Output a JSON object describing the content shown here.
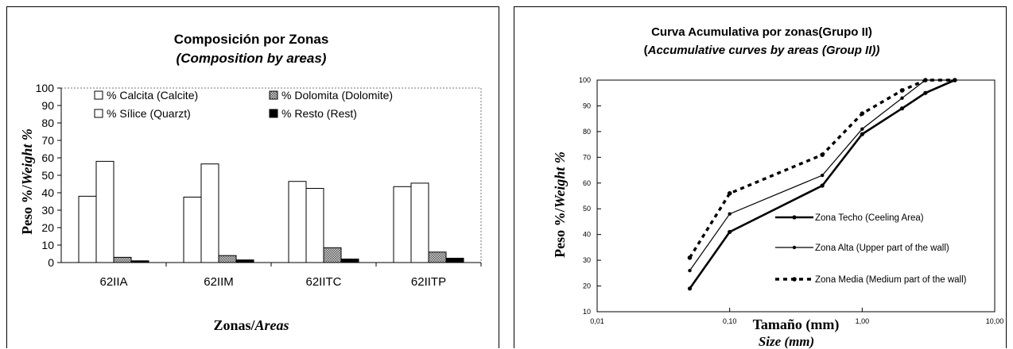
{
  "charts": {
    "left": {
      "title": "Composición por Zonas",
      "subtitle": "(Composition by areas)",
      "ylabel_a": "Peso %/",
      "ylabel_b": "Weight %",
      "xlabel_a": "Zonas/",
      "xlabel_b": "Areas"
    },
    "right": {
      "title": "Curva Acumulativa por zonas(Grupo II)",
      "subtitle_pre": "(",
      "subtitle_main": "Accumulative curves by areas (Group II))",
      "ylabel_a": "Peso %/",
      "ylabel_b": "Weight %",
      "xlabel": "Tamaño (mm)",
      "xlabel_sub": "Size (mm)"
    }
  },
  "chart_data": [
    {
      "type": "bar",
      "title": "Composición por Zonas",
      "subtitle": "(Composition by areas)",
      "xlabel": "Zonas/Areas",
      "ylabel": "Peso %/Weight %",
      "ylim": [
        0,
        100
      ],
      "yticks": [
        "0",
        "10",
        "20",
        "30",
        "40",
        "50",
        "60",
        "70",
        "80",
        "90",
        "100"
      ],
      "categories": [
        "62IIA",
        "62IIM",
        "62IITC",
        "62IITP"
      ],
      "series": [
        {
          "name": "% Calcita (Calcite)",
          "values": [
            38,
            37.5,
            46.5,
            43.5
          ],
          "color": "#ffffff"
        },
        {
          "name": "% Sílice (Quarzt)",
          "values": [
            58,
            56.5,
            42.5,
            45.5
          ],
          "color": "#ffffff"
        },
        {
          "name": "% Dolomita (Dolomite)",
          "values": [
            3,
            4,
            8.5,
            6
          ],
          "color": "#9a9a9a"
        },
        {
          "name": "% Resto (Rest)",
          "values": [
            1,
            1.5,
            2,
            2.5
          ],
          "color": "#000000"
        }
      ],
      "legend": "top-left",
      "grid": false
    },
    {
      "type": "line",
      "title": "Curva Acumulativa por zonas(Grupo II)",
      "subtitle": "(Accumulative curves by areas (Group II))",
      "xlabel": "Tamaño (mm)",
      "xlabel_sub": "Size (mm)",
      "ylabel": "Peso %/Weight %",
      "xscale": "log",
      "xlim": [
        0.01,
        10
      ],
      "xticks": [
        "0,01",
        "0,10",
        "1,00",
        "10,00"
      ],
      "ylim": [
        10,
        100
      ],
      "yticks": [
        "10",
        "20",
        "30",
        "40",
        "50",
        "60",
        "70",
        "80",
        "90",
        "100"
      ],
      "x": [
        0.05,
        0.1,
        0.5,
        1.0,
        2.0,
        3.0,
        5.0
      ],
      "series": [
        {
          "name": "Zona Techo (Ceeling Area)",
          "values": [
            19,
            41,
            59,
            79,
            89,
            95,
            100
          ],
          "style": "thick-solid"
        },
        {
          "name": "Zona Alta (Upper part of the wall)",
          "values": [
            26,
            48,
            63,
            81,
            93,
            100,
            100
          ],
          "style": "thin-solid"
        },
        {
          "name": "Zona Media (Medium part of the wall)",
          "values": [
            31,
            56,
            71,
            87,
            96,
            100,
            100
          ],
          "style": "dotted"
        }
      ],
      "legend": "right",
      "grid": false
    }
  ]
}
